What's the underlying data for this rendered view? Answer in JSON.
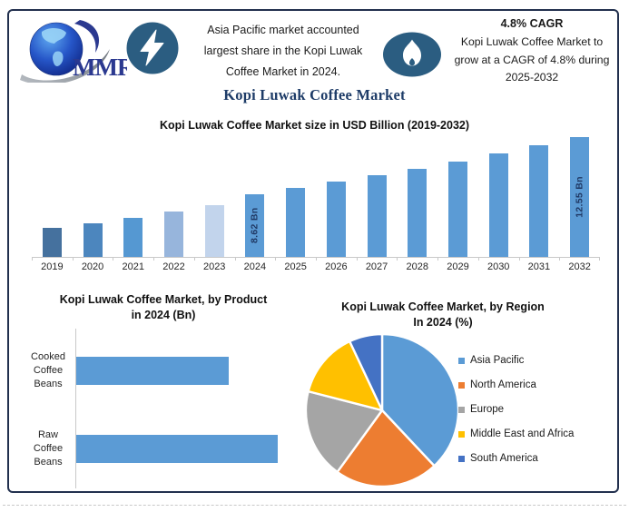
{
  "page_title": "Kopi Luwak Coffee Market",
  "header": {
    "logo_text": "MMR",
    "left_highlight": {
      "icon": "lightning-icon",
      "lines": [
        "Asia Pacific market accounted",
        "largest share in the Kopi Luwak",
        "Coffee Market in 2024."
      ]
    },
    "right_highlight": {
      "icon": "flame-icon",
      "heading": "4.8% CAGR",
      "lines": [
        "Kopi Luwak Coffee Market to",
        "grow at a CAGR of 4.8% during",
        "2025-2032"
      ]
    }
  },
  "colors": {
    "frame_border": "#22304E",
    "title_navy": "#1E3C68",
    "icon_blue": "#2B5D81",
    "bar_blue": "#5B9BD5",
    "data_label_navy": "#1F3864",
    "axis_gray": "#C9C9C9"
  },
  "chart_data": [
    {
      "id": "market-size-by-year",
      "type": "bar",
      "title": "Kopi Luwak Coffee Market size in USD Billion (2019-2032)",
      "unit": "USD Billion",
      "categories": [
        "2019",
        "2020",
        "2021",
        "2022",
        "2023",
        "2024",
        "2025",
        "2026",
        "2027",
        "2028",
        "2029",
        "2030",
        "2031",
        "2032"
      ],
      "values": [
        6.3,
        6.62,
        6.99,
        7.43,
        7.86,
        8.62,
        9.03,
        9.47,
        9.92,
        10.4,
        10.9,
        11.42,
        11.97,
        12.55
      ],
      "data_labels": {
        "2024": "8.62 Bn",
        "2032": "12.55 Bn"
      },
      "bar_colors": [
        "#45719E",
        "#4C86BE",
        "#5598D2",
        "#97B5DC",
        "#C2D4EC",
        "#5B9BD5",
        "#5B9BD5",
        "#5B9BD5",
        "#5B9BD5",
        "#5B9BD5",
        "#5B9BD5",
        "#5B9BD5",
        "#5B9BD5",
        "#5B9BD5"
      ],
      "ylim": [
        4.3,
        13.0
      ],
      "grid": false,
      "legend": false
    },
    {
      "id": "market-by-product-2024",
      "type": "bar",
      "orientation": "horizontal",
      "title": "Kopi Luwak Coffee Market, by Product in 2024 (Bn)",
      "title_lines": [
        "Kopi Luwak Coffee Market, by Product",
        "in 2024 (Bn)"
      ],
      "unit": "USD Billion",
      "categories": [
        "Cooked Coffee Beans",
        "Raw Coffee Beans"
      ],
      "category_lines": [
        [
          "Cooked",
          "Coffee",
          "Beans"
        ],
        [
          "Raw",
          "Coffee",
          "Beans"
        ]
      ],
      "values": [
        3.7,
        4.9
      ],
      "xlim": [
        0,
        5.6
      ],
      "bar_color": "#5B9BD5",
      "grid": false,
      "legend": false
    },
    {
      "id": "market-by-region-2024",
      "type": "pie",
      "title": "Kopi Luwak Coffee Market, by Region In 2024 (%)",
      "title_lines": [
        "Kopi Luwak Coffee Market, by Region",
        "In 2024 (%)"
      ],
      "labels": [
        "Asia Pacific",
        "North America",
        "Europe",
        "Middle East and Africa",
        "South America"
      ],
      "values": [
        38,
        22,
        19,
        14,
        7
      ],
      "colors": [
        "#5B9BD5",
        "#ED7D31",
        "#A5A5A5",
        "#FFC000",
        "#4472C4"
      ],
      "start_angle_deg": 0,
      "direction": "clockwise",
      "legend_position": "right"
    }
  ]
}
